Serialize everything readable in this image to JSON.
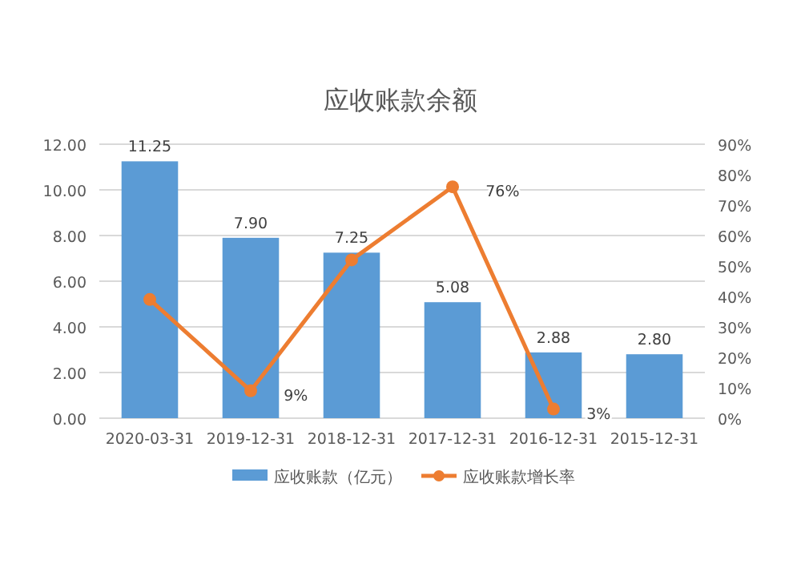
{
  "chart_data": {
    "type": "bar",
    "title": "应收账款余额",
    "categories": [
      "2020-03-31",
      "2019-12-31",
      "2018-12-31",
      "2017-12-31",
      "2016-12-31",
      "2015-12-31"
    ],
    "series": [
      {
        "name": "应收账款（亿元）",
        "color": "#5b9bd5",
        "values": [
          11.25,
          7.9,
          7.25,
          5.08,
          2.88,
          2.8
        ],
        "value_labels": [
          "11.25",
          "7.90",
          "7.25",
          "5.08",
          "2.88",
          "2.80"
        ]
      },
      {
        "name": "应收账款增长率",
        "type": "line",
        "axis": "y2",
        "color": "#ed7d31",
        "marker": "circle",
        "values": [
          39,
          9,
          52,
          76,
          3,
          null
        ],
        "value_labels": [
          null,
          "9%",
          null,
          "76%",
          "3%",
          null
        ]
      }
    ],
    "ylim": [
      0,
      12
    ],
    "yticks": [
      {
        "value": 0,
        "label": "0.00"
      },
      {
        "value": 2,
        "label": "2.00"
      },
      {
        "value": 4,
        "label": "4.00"
      },
      {
        "value": 6,
        "label": "6.00"
      },
      {
        "value": 8,
        "label": "8.00"
      },
      {
        "value": 10,
        "label": "10.00"
      },
      {
        "value": 12,
        "label": "12.00"
      }
    ],
    "y2lim": [
      0,
      90
    ],
    "y2ticks": [
      {
        "value": 0,
        "label": "0%"
      },
      {
        "value": 10,
        "label": "10%"
      },
      {
        "value": 20,
        "label": "20%"
      },
      {
        "value": 30,
        "label": "30%"
      },
      {
        "value": 40,
        "label": "40%"
      },
      {
        "value": 50,
        "label": "50%"
      },
      {
        "value": 60,
        "label": "60%"
      },
      {
        "value": 70,
        "label": "70%"
      },
      {
        "value": 80,
        "label": "80%"
      },
      {
        "value": 90,
        "label": "90%"
      }
    ],
    "grid": "y",
    "legend": "bottom"
  }
}
